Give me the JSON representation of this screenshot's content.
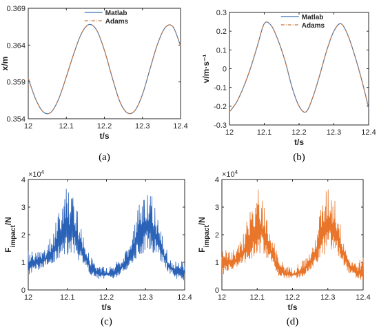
{
  "chart_data": [
    {
      "id": "a",
      "type": "line",
      "caption": "(a)",
      "xlabel": "t/s",
      "ylabel": "x/m",
      "xlim": [
        12,
        12.4
      ],
      "ylim": [
        0.354,
        0.369
      ],
      "xticks": [
        "12",
        "12.1",
        "12.2",
        "12.3",
        "12.4"
      ],
      "yticks": [
        "0.354",
        "0.359",
        "0.364",
        "0.369"
      ],
      "legend": "top-center",
      "series": [
        {
          "name": "Matlab",
          "color": "#3a74b8",
          "style": "solid",
          "x": [
            12.0,
            12.02,
            12.04,
            12.06,
            12.08,
            12.1,
            12.12,
            12.14,
            12.16,
            12.18,
            12.2,
            12.22,
            12.24,
            12.26,
            12.28,
            12.3,
            12.32,
            12.34,
            12.36,
            12.38,
            12.4
          ],
          "y": [
            0.3595,
            0.3566,
            0.3549,
            0.3549,
            0.3567,
            0.3597,
            0.3629,
            0.3656,
            0.3668,
            0.366,
            0.3633,
            0.3597,
            0.3564,
            0.3548,
            0.3551,
            0.3573,
            0.3608,
            0.3642,
            0.3664,
            0.3665,
            0.3639
          ]
        },
        {
          "name": "Adams",
          "color": "#c9783f",
          "style": "dashdot",
          "x": [
            12.0,
            12.02,
            12.04,
            12.06,
            12.08,
            12.1,
            12.12,
            12.14,
            12.16,
            12.18,
            12.2,
            12.22,
            12.24,
            12.26,
            12.28,
            12.3,
            12.32,
            12.34,
            12.36,
            12.38,
            12.4
          ],
          "y": [
            0.3595,
            0.3566,
            0.3549,
            0.3549,
            0.3567,
            0.3597,
            0.3629,
            0.3656,
            0.3668,
            0.366,
            0.3633,
            0.3597,
            0.3564,
            0.3548,
            0.3551,
            0.3573,
            0.3608,
            0.3642,
            0.3664,
            0.3665,
            0.3639
          ]
        }
      ]
    },
    {
      "id": "b",
      "type": "line",
      "caption": "(b)",
      "xlabel": "t/s",
      "ylabel": "v/m·s⁻¹",
      "xlim": [
        12,
        12.4
      ],
      "ylim": [
        -0.3,
        0.3
      ],
      "xticks": [
        "12",
        "12.1",
        "12.2",
        "12.3",
        "12.4"
      ],
      "yticks": [
        "-0.3",
        "-0.2",
        "-0.1",
        "0",
        "0.1",
        "0.2",
        "0.3"
      ],
      "legend": "top-center",
      "series": [
        {
          "name": "Matlab",
          "color": "#3a74b8",
          "style": "solid",
          "x": [
            12.0,
            12.02,
            12.04,
            12.06,
            12.08,
            12.1,
            12.12,
            12.14,
            12.16,
            12.18,
            12.2,
            12.22,
            12.24,
            12.26,
            12.28,
            12.3,
            12.32,
            12.34,
            12.36,
            12.38,
            12.4
          ],
          "y": [
            -0.23,
            -0.18,
            -0.1,
            0.0,
            0.12,
            0.24,
            0.23,
            0.15,
            0.04,
            -0.1,
            -0.2,
            -0.23,
            -0.15,
            -0.03,
            0.1,
            0.2,
            0.24,
            0.18,
            0.07,
            -0.06,
            -0.21
          ]
        },
        {
          "name": "Adams",
          "color": "#c9783f",
          "style": "dashdot",
          "x": [
            12.0,
            12.02,
            12.04,
            12.06,
            12.08,
            12.1,
            12.12,
            12.14,
            12.16,
            12.18,
            12.2,
            12.22,
            12.24,
            12.26,
            12.28,
            12.3,
            12.32,
            12.34,
            12.36,
            12.38,
            12.4
          ],
          "y": [
            -0.23,
            -0.18,
            -0.1,
            0.0,
            0.12,
            0.24,
            0.23,
            0.15,
            0.04,
            -0.1,
            -0.2,
            -0.23,
            -0.15,
            -0.03,
            0.1,
            0.2,
            0.24,
            0.18,
            0.07,
            -0.06,
            -0.21
          ]
        }
      ]
    },
    {
      "id": "c",
      "type": "line",
      "caption": "(c)",
      "xlabel": "t/s",
      "ylabel": "F",
      "ylabel_sub": "impact",
      "ylabel_unit": "/N",
      "exponent_label": "×10",
      "exponent_power": "4",
      "xlim": [
        12,
        12.4
      ],
      "ylim": [
        0,
        40000
      ],
      "xticks": [
        "12",
        "12.1",
        "12.2",
        "12.3",
        "12.4"
      ],
      "yticks": [
        "0",
        "1",
        "2",
        "3",
        "4"
      ],
      "series": [
        {
          "color": "#2a62b8",
          "style": "solid",
          "x": [
            12.0,
            12.02,
            12.04,
            12.06,
            12.08,
            12.1,
            12.12,
            12.14,
            12.16,
            12.18,
            12.2,
            12.22,
            12.24,
            12.26,
            12.28,
            12.3,
            12.32,
            12.34,
            12.36,
            12.38,
            12.4
          ],
          "y_low": [
            5000,
            7000,
            8000,
            9000,
            11000,
            12000,
            12000,
            9000,
            5000,
            4000,
            4000,
            4000,
            6000,
            8000,
            11000,
            14000,
            13000,
            10000,
            6000,
            4000,
            3000
          ],
          "y_high": [
            15000,
            14000,
            15000,
            20000,
            30000,
            38000,
            33000,
            21000,
            12000,
            9000,
            8000,
            10000,
            12000,
            16000,
            30000,
            38000,
            34000,
            21000,
            12000,
            10000,
            12000
          ]
        }
      ]
    },
    {
      "id": "d",
      "type": "line",
      "caption": "(d)",
      "xlabel": "t/s",
      "ylabel": "F",
      "ylabel_sub": "impact",
      "ylabel_unit": "/N",
      "exponent_label": "×10",
      "exponent_power": "4",
      "xlim": [
        12,
        12.4
      ],
      "ylim": [
        0,
        40000
      ],
      "xticks": [
        "12",
        "12.1",
        "12.2",
        "12.3",
        "12.4"
      ],
      "yticks": [
        "0",
        "1",
        "2",
        "3",
        "4"
      ],
      "series": [
        {
          "color": "#e8752a",
          "style": "solid",
          "x": [
            12.0,
            12.02,
            12.04,
            12.06,
            12.08,
            12.1,
            12.12,
            12.14,
            12.16,
            12.18,
            12.2,
            12.22,
            12.24,
            12.26,
            12.28,
            12.3,
            12.32,
            12.34,
            12.36,
            12.38,
            12.4
          ],
          "y_low": [
            5000,
            7000,
            8000,
            9000,
            11000,
            12000,
            12000,
            9000,
            5000,
            4000,
            4000,
            4000,
            6000,
            8000,
            11000,
            14000,
            13000,
            10000,
            6000,
            4000,
            3000
          ],
          "y_high": [
            15000,
            14000,
            15000,
            20000,
            30000,
            38000,
            33000,
            21000,
            12000,
            9000,
            8000,
            10000,
            12000,
            16000,
            30000,
            38000,
            34000,
            21000,
            12000,
            10000,
            12000
          ]
        }
      ]
    }
  ]
}
